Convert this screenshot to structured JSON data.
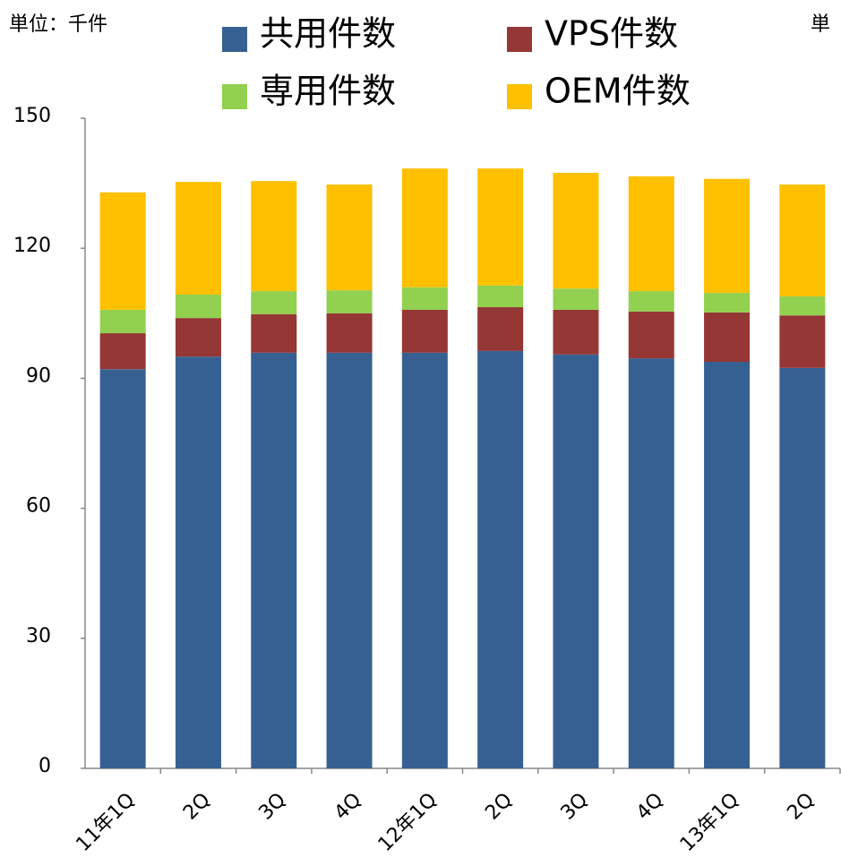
{
  "chart_data": {
    "type": "stacked_bar",
    "unit_label": "単位：千件",
    "unit_label_right": "単",
    "categories": [
      "11年1Q",
      "2Q",
      "3Q",
      "4Q",
      "12年1Q",
      "2Q",
      "3Q",
      "4Q",
      "13年1Q",
      "2Q"
    ],
    "series": [
      {
        "name": "共用件数",
        "color": "#376092",
        "values": [
          92.1,
          95.0,
          95.9,
          95.9,
          95.9,
          96.3,
          95.5,
          94.6,
          93.8,
          92.4
        ]
      },
      {
        "name": "VPS件数",
        "color": "#953735",
        "values": [
          8.3,
          8.9,
          8.9,
          9.1,
          9.9,
          10.1,
          10.3,
          10.8,
          11.4,
          12.1
        ]
      },
      {
        "name": "専用件数",
        "color": "#92d050",
        "values": [
          5.4,
          5.4,
          5.3,
          5.3,
          5.2,
          5.0,
          4.9,
          4.7,
          4.5,
          4.4
        ]
      },
      {
        "name": "OEM件数",
        "color": "#ffc000",
        "values": [
          27.1,
          26.0,
          25.4,
          24.4,
          27.4,
          27.0,
          26.7,
          26.5,
          26.3,
          25.8
        ]
      }
    ],
    "ylim": [
      0,
      150
    ],
    "yticks": [
      0,
      30,
      60,
      90,
      120,
      150
    ],
    "legend": "top",
    "grid": false
  }
}
